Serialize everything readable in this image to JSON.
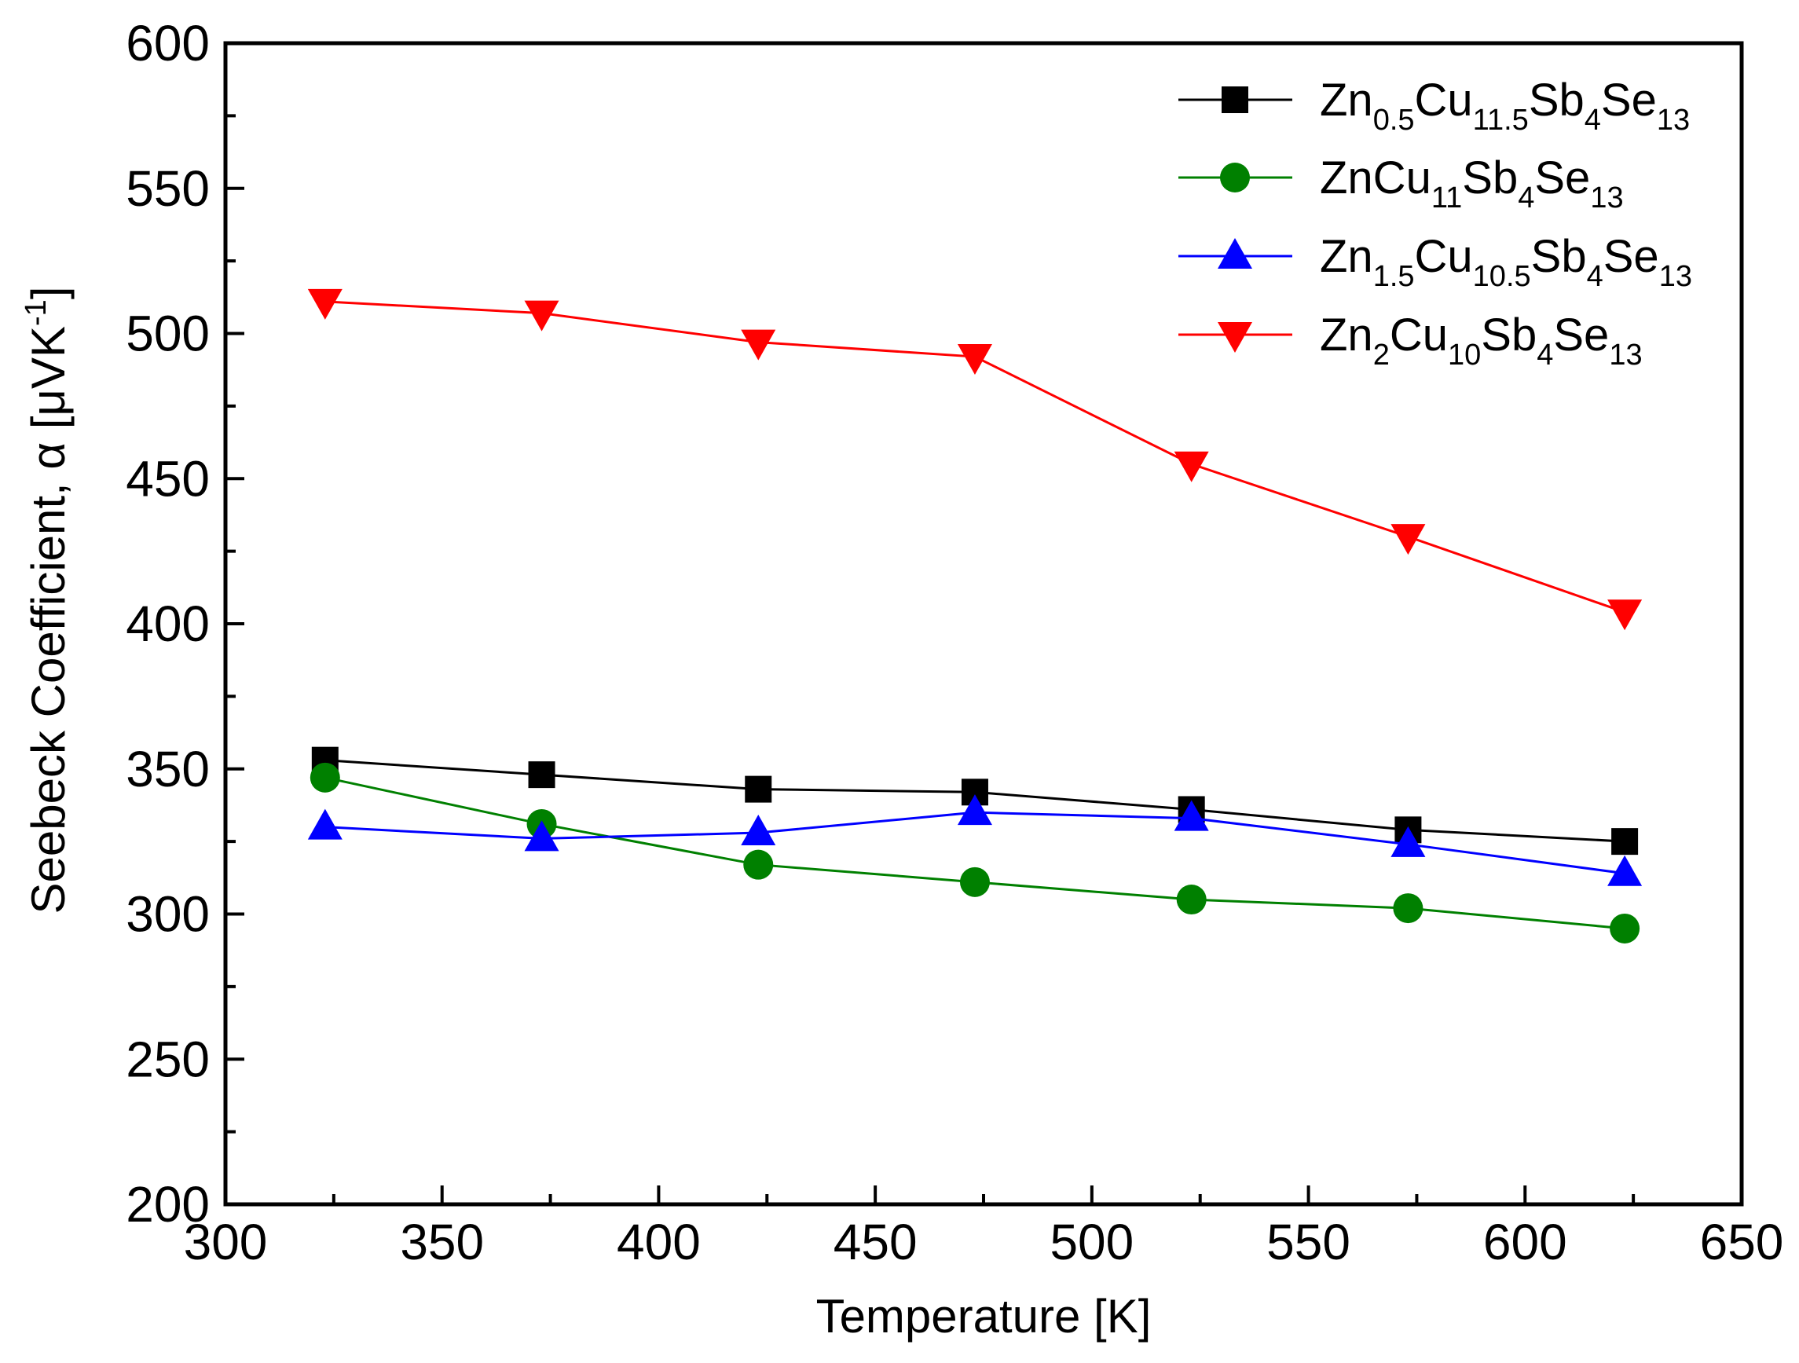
{
  "chart_data": {
    "type": "line",
    "title": "",
    "xlabel": "Temperature [K]",
    "ylabel": {
      "main": "Seebeck Coefficient, α [μVK",
      "superscript": "-1",
      "close": "]"
    },
    "xlim": [
      300,
      650
    ],
    "ylim": [
      200,
      600
    ],
    "x_ticks": [
      300,
      350,
      400,
      450,
      500,
      550,
      600,
      650
    ],
    "y_ticks": [
      200,
      250,
      300,
      350,
      400,
      450,
      500,
      550,
      600
    ],
    "grid": false,
    "legend_position": "top-right",
    "x": [
      323,
      373,
      423,
      473,
      523,
      573,
      623
    ],
    "series": [
      {
        "name": "Zn0.5Cu11.5Sb4Se13",
        "name_parts": [
          [
            "Zn",
            ""
          ],
          [
            "0.5",
            "sub"
          ],
          [
            "Cu",
            ""
          ],
          [
            "11.5",
            "sub"
          ],
          [
            "Sb",
            ""
          ],
          [
            "4",
            "sub"
          ],
          [
            "Se",
            ""
          ],
          [
            "13",
            "sub"
          ]
        ],
        "marker": "square",
        "color": "#000000",
        "values": [
          353,
          348,
          343,
          342,
          336,
          329,
          325
        ]
      },
      {
        "name": "ZnCu11Sb4Se13",
        "name_parts": [
          [
            "ZnCu",
            ""
          ],
          [
            "11",
            "sub"
          ],
          [
            "Sb",
            ""
          ],
          [
            "4",
            "sub"
          ],
          [
            "Se",
            ""
          ],
          [
            "13",
            "sub"
          ]
        ],
        "marker": "circle",
        "color": "#008000",
        "values": [
          347,
          331,
          317,
          311,
          305,
          302,
          295
        ]
      },
      {
        "name": "Zn1.5Cu10.5Sb4Se13",
        "name_parts": [
          [
            "Zn",
            ""
          ],
          [
            "1.5",
            "sub"
          ],
          [
            "Cu",
            ""
          ],
          [
            "10.5",
            "sub"
          ],
          [
            "Sb",
            ""
          ],
          [
            "4",
            "sub"
          ],
          [
            "Se",
            ""
          ],
          [
            "13",
            "sub"
          ]
        ],
        "marker": "triangle-up",
        "color": "#0000ff",
        "values": [
          330,
          326,
          328,
          335,
          333,
          324,
          314
        ]
      },
      {
        "name": "Zn2Cu10Sb4Se13",
        "name_parts": [
          [
            "Zn",
            ""
          ],
          [
            "2",
            "sub"
          ],
          [
            "Cu",
            ""
          ],
          [
            "10",
            "sub"
          ],
          [
            "Sb",
            ""
          ],
          [
            "4",
            "sub"
          ],
          [
            "Se",
            ""
          ],
          [
            "13",
            "sub"
          ]
        ],
        "marker": "triangle-down",
        "color": "#ff0000",
        "values": [
          511,
          507,
          497,
          492,
          455,
          430,
          404
        ]
      }
    ]
  }
}
